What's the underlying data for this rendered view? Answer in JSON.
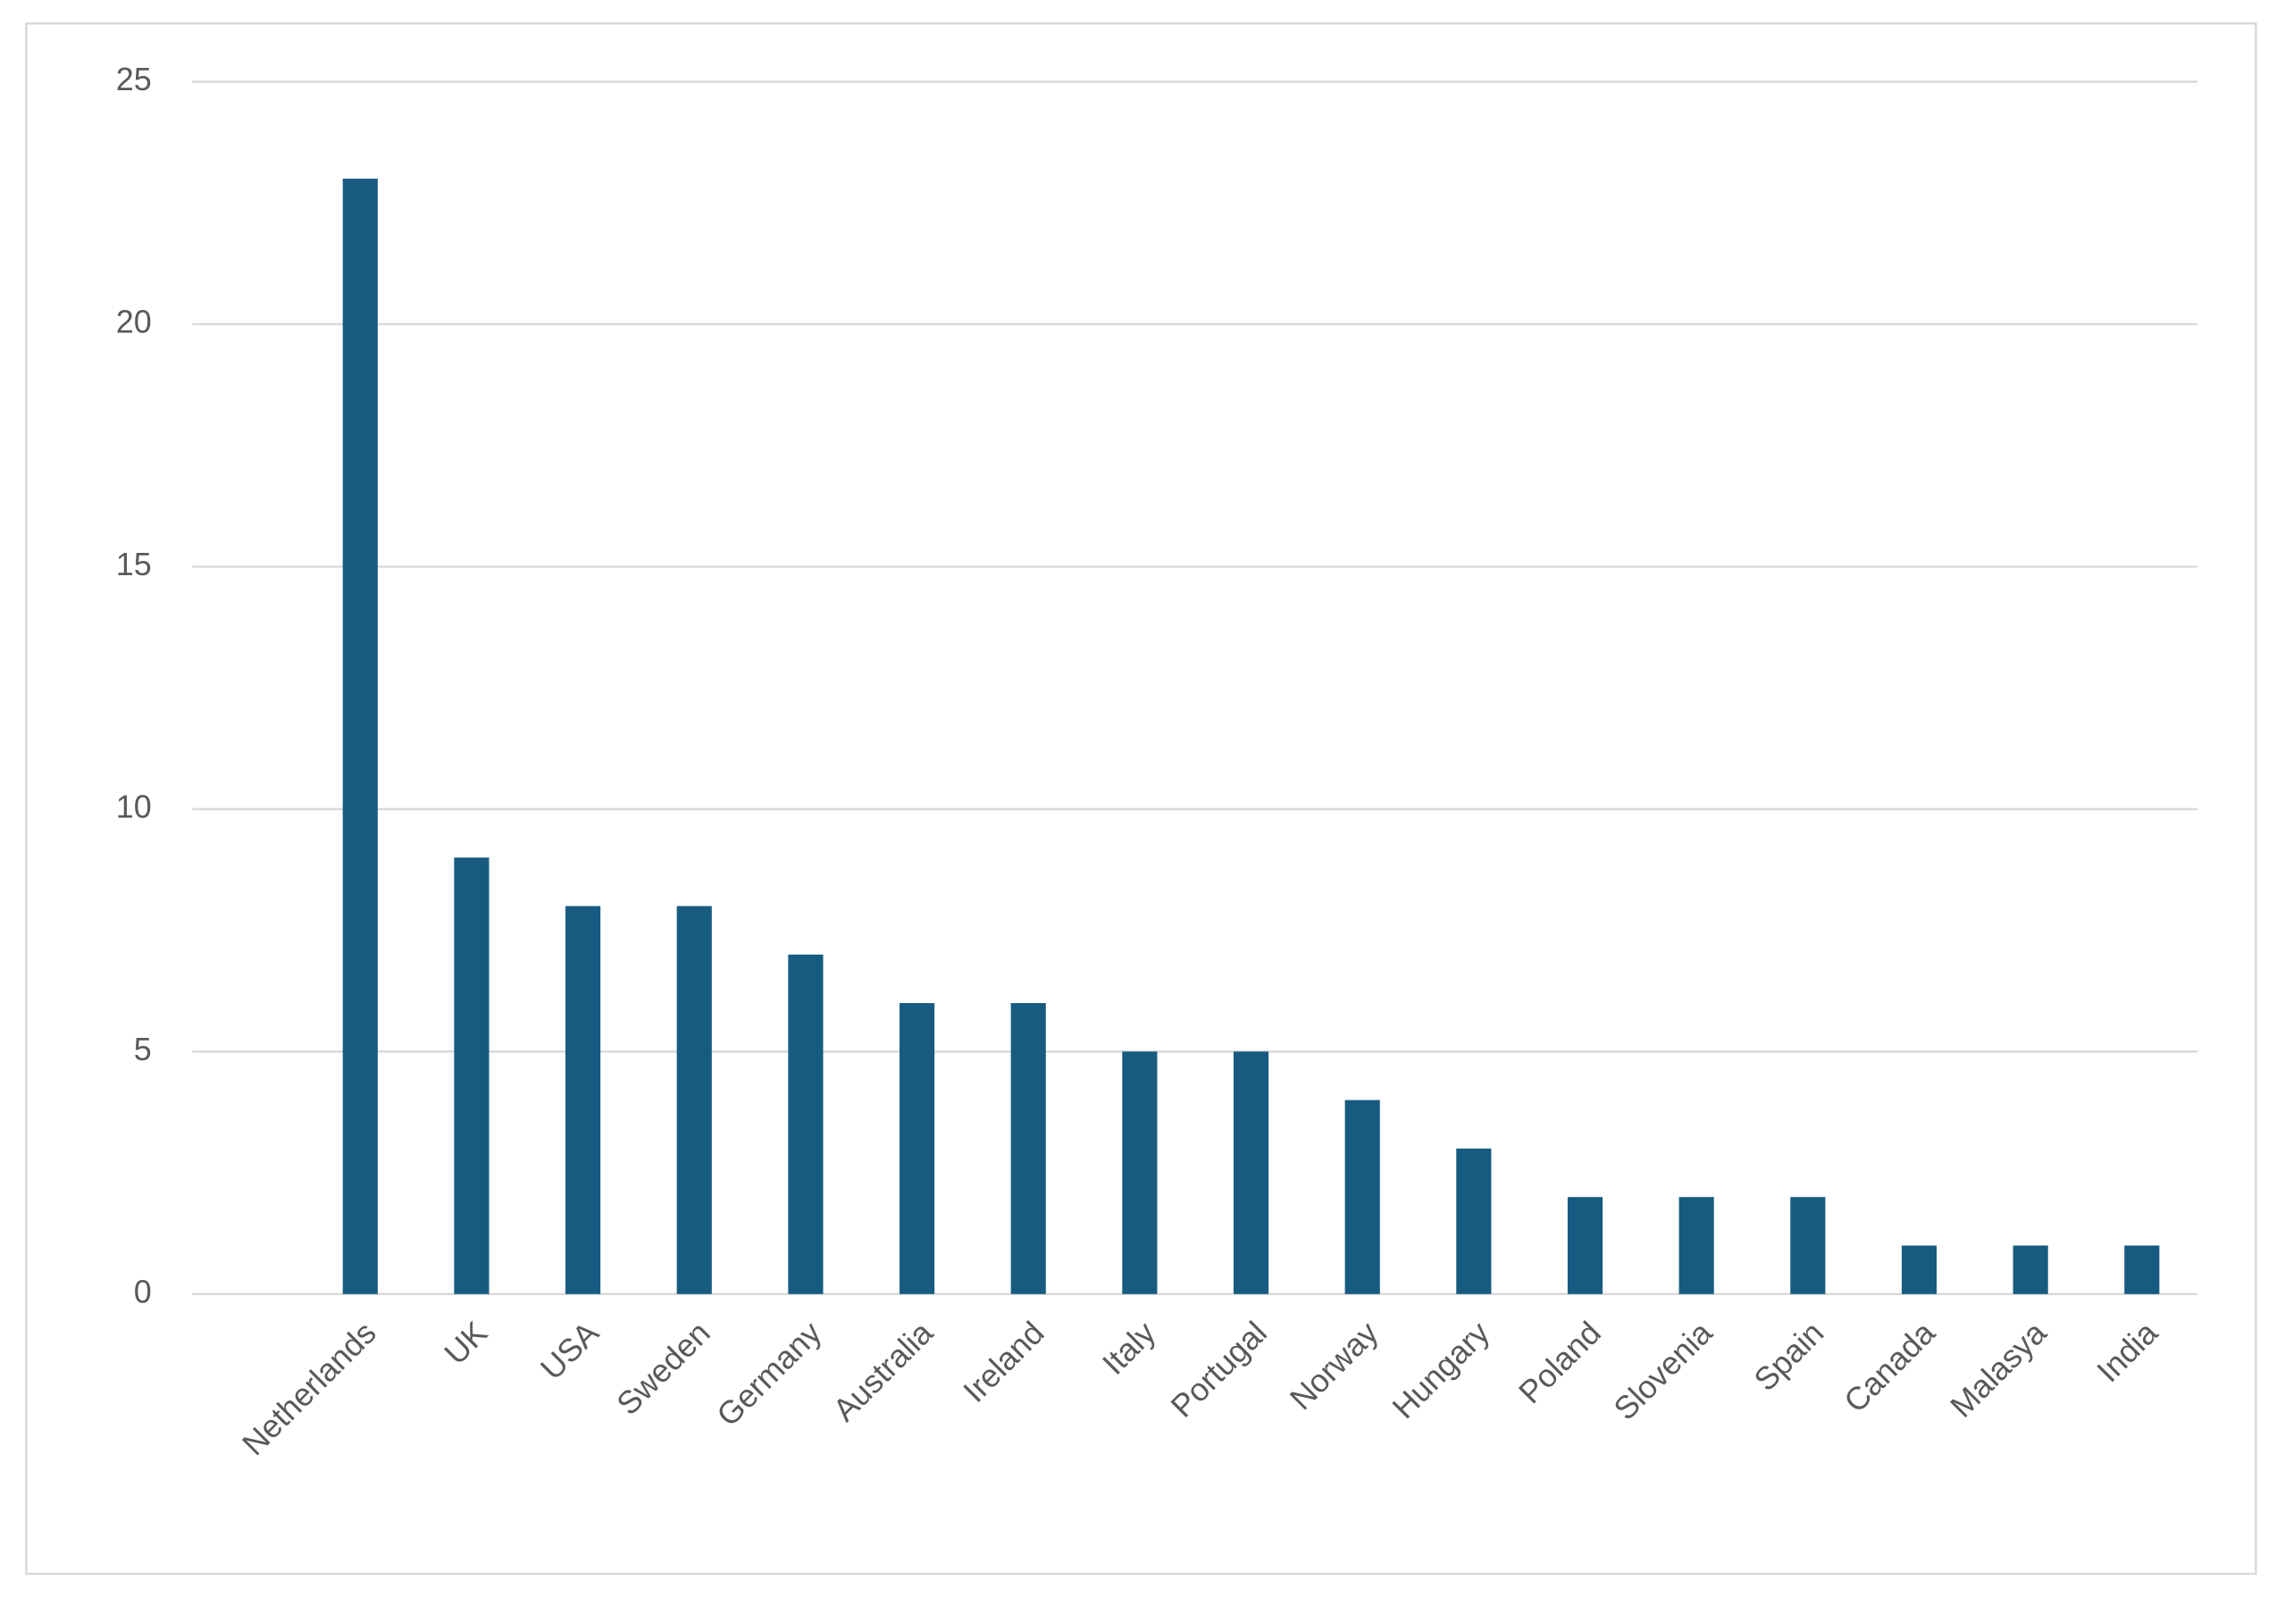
{
  "chart_data": {
    "type": "bar",
    "categories": [
      "Netherlands",
      "UK",
      "USA",
      "Sweden",
      "Germany",
      "Australia",
      "Ireland",
      "Italy",
      "Portugal",
      "Norway",
      "Hungary",
      "Poland",
      "Slovenia",
      "Spain",
      "Canada",
      "Malasya",
      "India"
    ],
    "values": [
      23,
      9,
      8,
      8,
      7,
      6,
      6,
      5,
      5,
      4,
      3,
      2,
      2,
      2,
      1,
      1,
      1
    ],
    "color": "#175b80",
    "ylim": [
      0,
      25
    ],
    "yticks": [
      0,
      5,
      10,
      15,
      20,
      25
    ],
    "grid": true
  }
}
